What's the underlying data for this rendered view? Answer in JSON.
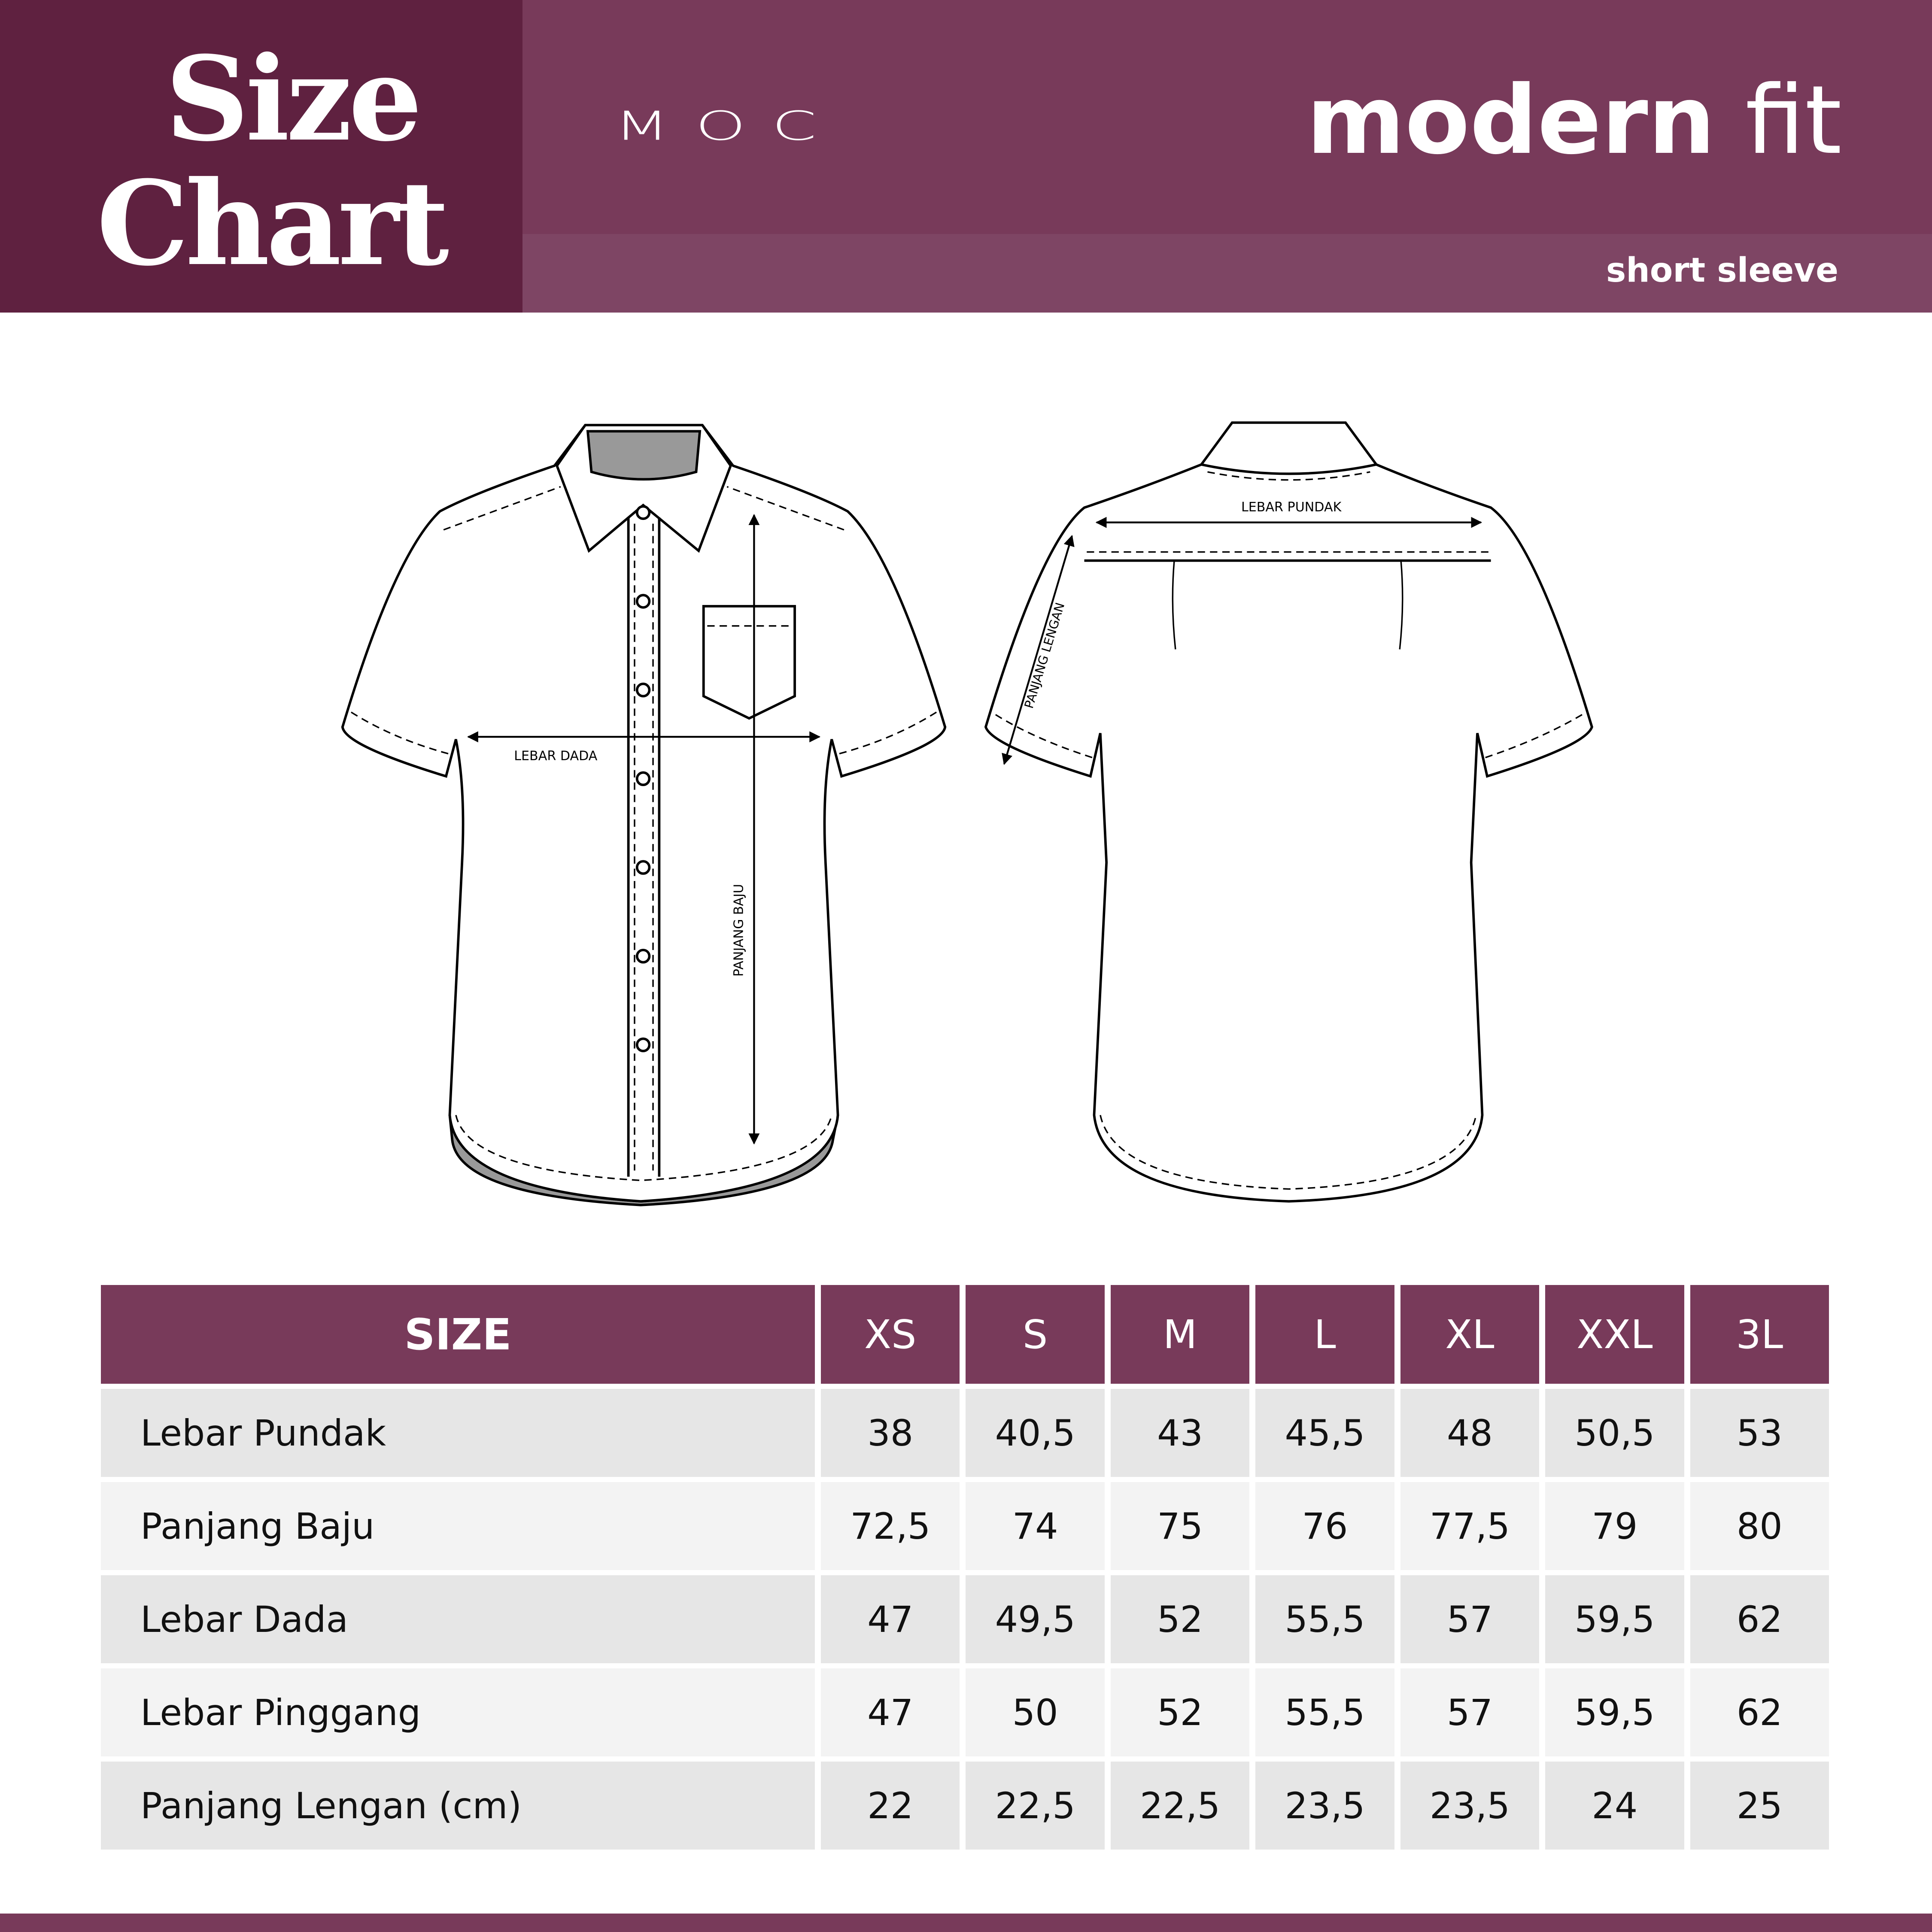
{
  "header": {
    "title_line1": "Size",
    "title_line2": "Chart",
    "brand_logo": "MOC",
    "fit_bold": "modern",
    "fit_light": "fit",
    "subtitle": "short sleeve"
  },
  "diagram": {
    "front_labels": {
      "chest": "LEBAR DADA",
      "length": "PANJANG BAJU"
    },
    "back_labels": {
      "shoulder": "LEBAR PUNDAK",
      "sleeve": "PANJANG LENGAN"
    }
  },
  "table": {
    "header_label": "SIZE",
    "sizes": [
      "XS",
      "S",
      "M",
      "L",
      "XL",
      "XXL",
      "3L"
    ],
    "rows": [
      {
        "label": "Lebar Pundak",
        "values": [
          "38",
          "40,5",
          "43",
          "45,5",
          "48",
          "50,5",
          "53"
        ]
      },
      {
        "label": "Panjang Baju",
        "values": [
          "72,5",
          "74",
          "75",
          "76",
          "77,5",
          "79",
          "80"
        ]
      },
      {
        "label": "Lebar Dada",
        "values": [
          "47",
          "49,5",
          "52",
          "55,5",
          "57",
          "59,5",
          "62"
        ]
      },
      {
        "label": "Lebar Pinggang",
        "values": [
          "47",
          "50",
          "52",
          "55,5",
          "57",
          "59,5",
          "62"
        ]
      },
      {
        "label": "Panjang Lengan (cm)",
        "values": [
          "22",
          "22,5",
          "22,5",
          "23,5",
          "23,5",
          "24",
          "25"
        ]
      }
    ]
  },
  "colors": {
    "header_dark": "#5f2140",
    "header_main": "#783a5a",
    "header_strip": "#7e4564",
    "row_dark": "#e6e6e6",
    "row_light": "#f3f3f3"
  }
}
